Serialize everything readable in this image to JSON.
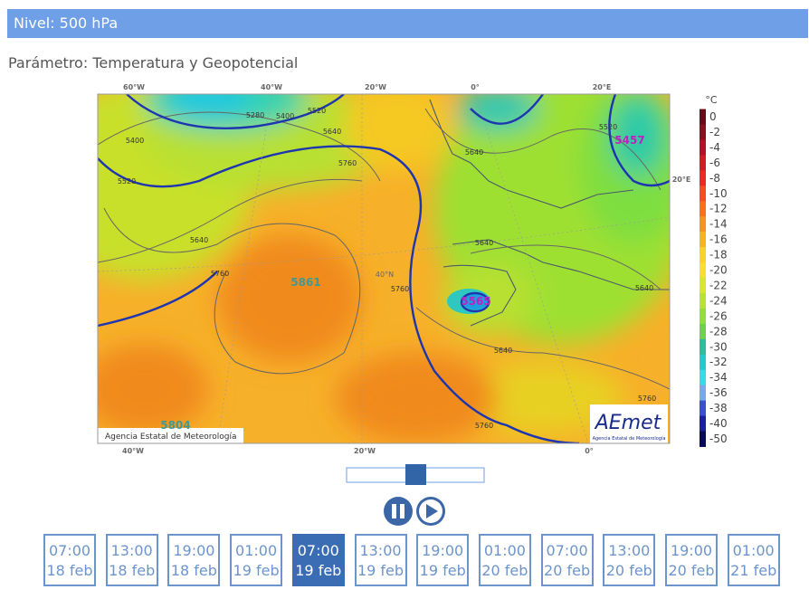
{
  "header": {
    "title": "Nivel: 500 hPa"
  },
  "parameter": "Parámetro: Temperatura y Geopotencial",
  "map": {
    "top_labels": [
      "60°W",
      "40°W",
      "20°W",
      "0°",
      "20°E"
    ],
    "bottom_labels": [
      "40°W",
      "20°W",
      "0°"
    ],
    "side_label": "20°E",
    "lat_label": "40°N",
    "contour_labels": [
      "5400",
      "5280",
      "5400",
      "5520",
      "5520",
      "5640",
      "5760",
      "5640",
      "5760",
      "5760",
      "5640",
      "5640",
      "5520",
      "5640",
      "5640",
      "5760",
      "5760"
    ],
    "centers": [
      "5861",
      "5457",
      "5565",
      "5804"
    ],
    "copyright": "Agencia Estatal de Meteorología",
    "logo": "AEmet",
    "logo_sub": "Agencia Estatal de Meteorología"
  },
  "legend": {
    "unit": "°C",
    "labels": [
      "0",
      "-2",
      "-4",
      "-6",
      "-8",
      "-10",
      "-12",
      "-14",
      "-16",
      "-18",
      "-20",
      "-22",
      "-24",
      "-26",
      "-28",
      "-30",
      "-32",
      "-34",
      "-36",
      "-38",
      "-40",
      "-50"
    ]
  },
  "times": [
    {
      "time": "07:00",
      "date": "18 feb"
    },
    {
      "time": "13:00",
      "date": "18 feb"
    },
    {
      "time": "19:00",
      "date": "18 feb"
    },
    {
      "time": "01:00",
      "date": "19 feb"
    },
    {
      "time": "07:00",
      "date": "19 feb"
    },
    {
      "time": "13:00",
      "date": "19 feb"
    },
    {
      "time": "19:00",
      "date": "19 feb"
    },
    {
      "time": "01:00",
      "date": "20 feb"
    },
    {
      "time": "07:00",
      "date": "20 feb"
    },
    {
      "time": "13:00",
      "date": "20 feb"
    },
    {
      "time": "19:00",
      "date": "20 feb"
    },
    {
      "time": "01:00",
      "date": "21 feb"
    }
  ],
  "selected_time": 4
}
